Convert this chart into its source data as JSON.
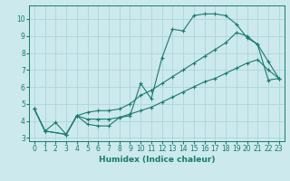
{
  "xlabel": "Humidex (Indice chaleur)",
  "bg_color": "#cce9ed",
  "grid_color": "#b0d8de",
  "line_color": "#1a7a6e",
  "xlim": [
    -0.5,
    23.5
  ],
  "ylim": [
    2.8,
    10.8
  ],
  "xticks": [
    0,
    1,
    2,
    3,
    4,
    5,
    6,
    7,
    8,
    9,
    10,
    11,
    12,
    13,
    14,
    15,
    16,
    17,
    18,
    19,
    20,
    21,
    22,
    23
  ],
  "yticks": [
    3,
    4,
    5,
    6,
    7,
    8,
    9,
    10
  ],
  "line1_x": [
    0,
    1,
    2,
    3,
    4,
    5,
    6,
    7,
    8,
    9,
    10,
    11,
    12,
    13,
    14,
    15,
    16,
    17,
    18,
    19,
    20,
    21,
    22,
    23
  ],
  "line1_y": [
    4.7,
    3.4,
    3.9,
    3.2,
    4.3,
    3.8,
    3.7,
    3.7,
    4.2,
    4.3,
    6.2,
    5.3,
    7.7,
    9.4,
    9.3,
    10.2,
    10.3,
    10.3,
    10.2,
    9.7,
    8.9,
    8.5,
    6.4,
    6.5
  ],
  "line2_x": [
    0,
    1,
    3,
    4,
    5,
    6,
    7,
    8,
    9,
    10,
    11,
    12,
    13,
    14,
    15,
    16,
    17,
    18,
    19,
    20,
    21,
    22,
    23
  ],
  "line2_y": [
    4.7,
    3.4,
    3.2,
    4.3,
    4.5,
    4.6,
    4.6,
    4.7,
    5.0,
    5.5,
    5.8,
    6.2,
    6.6,
    7.0,
    7.4,
    7.8,
    8.2,
    8.6,
    9.2,
    9.0,
    8.5,
    7.5,
    6.5
  ],
  "line3_x": [
    0,
    1,
    3,
    4,
    5,
    6,
    7,
    8,
    9,
    10,
    11,
    12,
    13,
    14,
    15,
    16,
    17,
    18,
    19,
    20,
    21,
    22,
    23
  ],
  "line3_y": [
    4.7,
    3.4,
    3.2,
    4.3,
    4.1,
    4.1,
    4.1,
    4.2,
    4.4,
    4.6,
    4.8,
    5.1,
    5.4,
    5.7,
    6.0,
    6.3,
    6.5,
    6.8,
    7.1,
    7.4,
    7.6,
    7.0,
    6.5
  ]
}
